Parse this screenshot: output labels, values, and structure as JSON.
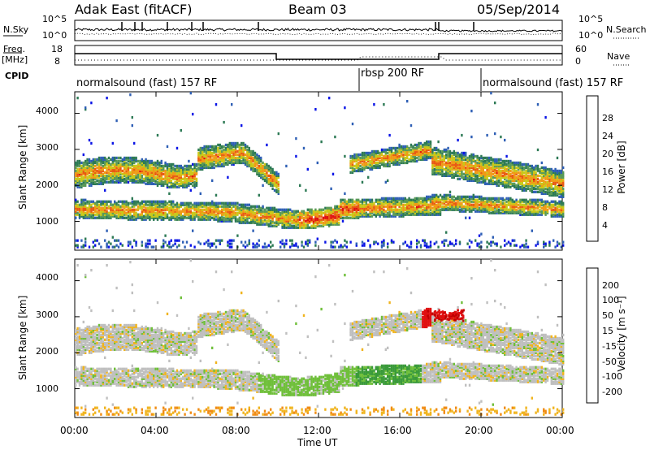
{
  "header": {
    "station": "Adak East (fitACF)",
    "beam": "Beam 03",
    "date": "05/Sep/2014"
  },
  "top_panel": {
    "left_label": "N.Sky",
    "right_label": "N.Search",
    "left_ticks": [
      "10^5",
      "10^0"
    ],
    "right_ticks": [
      "10^5",
      "10^0"
    ]
  },
  "freq_panel": {
    "left_label": "Freq.",
    "left_unit": "[MHz]",
    "right_label": "Nave",
    "left_ticks": [
      "18",
      "8"
    ],
    "right_ticks": [
      "60",
      "0"
    ]
  },
  "cpid": {
    "label": "CPID",
    "segments": [
      {
        "name": "normalsound (fast) 157 RF",
        "start_hour": 0,
        "end_hour": 14
      },
      {
        "name": "rbsp 200 RF",
        "start_hour": 14,
        "end_hour": 20
      },
      {
        "name": "normalsound (fast) 157 RF",
        "start_hour": 20,
        "end_hour": 24
      }
    ]
  },
  "colors": {
    "power_scale": [
      "#0a14e6",
      "#2e5fb5",
      "#2d7a55",
      "#5a9a58",
      "#c9c919",
      "#f09a16",
      "#e85a14",
      "#e01010"
    ],
    "velocity_scale": [
      "#e01010",
      "#f05a14",
      "#f08c14",
      "#f0b41e",
      "#bfbfbf",
      "#6fbf3a",
      "#3a9a3a",
      "#1e6a50",
      "#1e3aa0"
    ]
  },
  "chart_data": [
    {
      "type": "heatmap",
      "title": "Power",
      "xlabel": "",
      "ylabel": "Slant Range [km]",
      "x_range_hours": [
        0,
        24
      ],
      "ylim": [
        200,
        4600
      ],
      "ytick_labels": [
        "1000",
        "2000",
        "3000",
        "4000"
      ],
      "colorbar": {
        "label": "Power [dB]",
        "ticks": [
          "4",
          "8",
          "12",
          "16",
          "20",
          "24",
          "28"
        ],
        "range": [
          0,
          32
        ]
      }
    },
    {
      "type": "heatmap",
      "title": "Velocity",
      "xlabel": "Time UT",
      "ylabel": "Slant Range [km]",
      "x_range_hours": [
        0,
        24
      ],
      "xtick_labels": [
        "00:00",
        "04:00",
        "08:00",
        "12:00",
        "16:00",
        "20:00",
        "00:00"
      ],
      "ylim": [
        200,
        4600
      ],
      "ytick_labels": [
        "1000",
        "2000",
        "3000",
        "4000"
      ],
      "colorbar": {
        "label": "Velocity [m s⁻¹]",
        "ticks": [
          "-200",
          "-100",
          "-50",
          "-15",
          "15",
          "50",
          "100",
          "200"
        ]
      }
    }
  ]
}
